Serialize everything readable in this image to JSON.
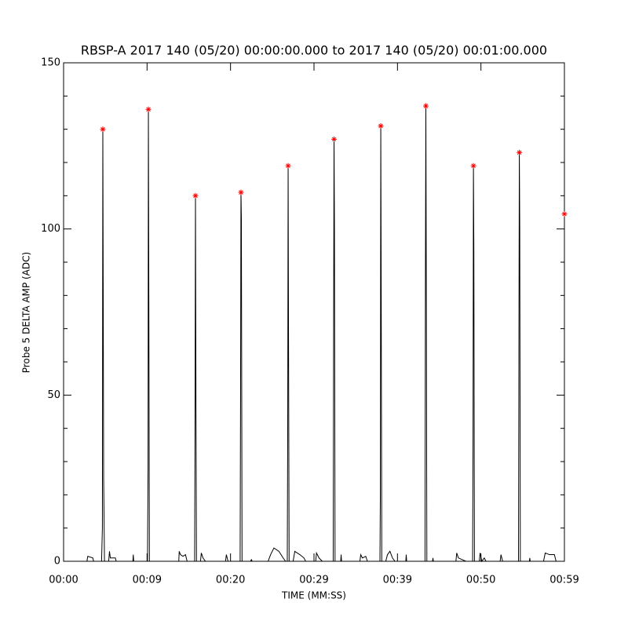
{
  "chart_data": {
    "type": "line",
    "title": "RBSP-A 2017 140 (05/20) 00:00:00.000 to 2017 140 (05/20) 00:01:00.000",
    "x_label": "TIME (MM:SS)",
    "y_label": "Probe 5 DELTA AMP (ADC)",
    "xlim": [
      0,
      60
    ],
    "ylim": [
      0,
      150
    ],
    "xticks": [
      {
        "value": 0,
        "label": "00:00"
      },
      {
        "value": 10,
        "label": "00:09"
      },
      {
        "value": 20,
        "label": "00:20"
      },
      {
        "value": 30,
        "label": "00:29"
      },
      {
        "value": 40,
        "label": "00:39"
      },
      {
        "value": 50,
        "label": "00:50"
      },
      {
        "value": 60,
        "label": "00:59"
      }
    ],
    "yticks": [
      0,
      50,
      100,
      150
    ],
    "yminorticks": [
      10,
      20,
      30,
      40,
      60,
      70,
      80,
      90,
      110,
      120,
      130,
      140
    ],
    "series": [
      {
        "color": "#000000",
        "x": [
          0,
          2.8,
          2.9,
          3.5,
          3.6,
          4.55,
          4.65,
          4.7,
          4.75,
          4.8,
          4.9,
          5.4,
          5.5,
          5.6,
          6.2,
          6.3,
          8.3,
          8.35,
          8.4,
          10.05,
          10.12,
          10.16,
          10.2,
          10.28,
          13.8,
          13.85,
          14.0,
          14.3,
          14.6,
          14.8,
          15.7,
          15.75,
          15.8,
          15.85,
          15.92,
          16.4,
          16.5,
          16.7,
          17,
          19.4,
          19.5,
          19.7,
          21.15,
          21.2,
          21.25,
          21.3,
          21.38,
          22.4,
          22.5,
          22.6,
          24.5,
          24.8,
          25.2,
          25.8,
          26.3,
          26.6,
          26.8,
          26.85,
          26.9,
          26.95,
          27.02,
          27.5,
          27.7,
          28.3,
          28.8,
          29.0,
          30.2,
          30.3,
          30.6,
          31,
          32.3,
          32.35,
          32.4,
          32.45,
          32.52,
          33.2,
          33.25,
          33.3,
          35.5,
          35.6,
          35.8,
          36.2,
          36.4,
          37.9,
          37.95,
          38.0,
          38.05,
          38.12,
          38.6,
          38.8,
          39.1,
          39.4,
          39.7,
          41.0,
          41.05,
          41.1,
          43.3,
          43.35,
          43.4,
          43.45,
          43.52,
          44.2,
          44.25,
          44.3,
          47.0,
          47.1,
          47.3,
          48.2,
          49.0,
          49.05,
          49.1,
          49.15,
          49.22,
          49.8,
          49.9,
          50.1,
          50.4,
          50.6,
          52.3,
          52.4,
          52.6,
          54.5,
          54.55,
          54.6,
          54.65,
          54.72,
          55.8,
          55.85,
          55.9,
          57.5,
          57.7,
          58.2,
          58.8,
          59.0,
          60
        ],
        "values": [
          0,
          0,
          1.5,
          1,
          0,
          0,
          10,
          130,
          78,
          25,
          0,
          0,
          3,
          1,
          1,
          0,
          0,
          2,
          0,
          0,
          28,
          136,
          95,
          0,
          0,
          3,
          2,
          1.5,
          2,
          0,
          0,
          43,
          110,
          58,
          0,
          0,
          2.5,
          1,
          0,
          0,
          2,
          0,
          0,
          48,
          111,
          103,
          0,
          0,
          0.5,
          0,
          0,
          2,
          4,
          3,
          1,
          0,
          0,
          38,
          119,
          66,
          0,
          0,
          3,
          2,
          1,
          0,
          0,
          2.5,
          1,
          0,
          0,
          70,
          127,
          100,
          0,
          0,
          2,
          0,
          0,
          2,
          1,
          1.5,
          0,
          0,
          20,
          131,
          83,
          0,
          0,
          2,
          3,
          1,
          0,
          0,
          2,
          0,
          0,
          86,
          137,
          88,
          0,
          0,
          1,
          0,
          0,
          2.5,
          1,
          0,
          0,
          34,
          119,
          94,
          0,
          0,
          2.5,
          0,
          1,
          0,
          0,
          2,
          0,
          0,
          66,
          123,
          100,
          0,
          0,
          1,
          0,
          0,
          2.5,
          2,
          2,
          0,
          0
        ]
      },
      {
        "color": "#ff0000",
        "marker": "asterisk",
        "x": [
          4.7,
          10.16,
          15.8,
          21.25,
          26.9,
          32.4,
          38.0,
          43.4,
          49.1,
          54.6,
          60
        ],
        "values": [
          130,
          136,
          110,
          111,
          119,
          127,
          131,
          137,
          119,
          123,
          104.5
        ]
      }
    ]
  }
}
